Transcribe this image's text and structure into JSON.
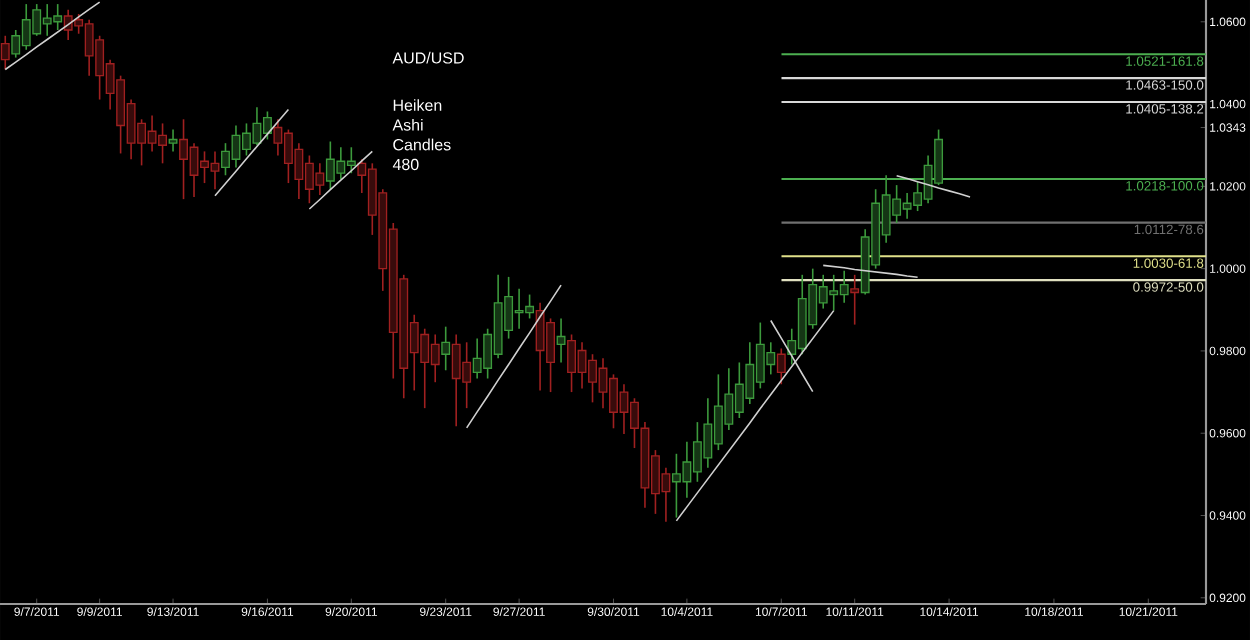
{
  "chart_data": {
    "type": "candlestick",
    "title": "AUD/USD",
    "subtitle": "Heiken Ashi Candles 480",
    "categories": [
      null,
      null,
      null,
      "9/7/2011",
      null,
      null,
      null,
      null,
      null,
      "9/9/2011",
      null,
      null,
      null,
      null,
      null,
      null,
      "9/13/2011",
      null,
      null,
      null,
      null,
      null,
      null,
      null,
      null,
      "9/16/2011",
      null,
      null,
      null,
      null,
      null,
      null,
      null,
      "9/20/2011",
      null,
      null,
      null,
      null,
      null,
      null,
      null,
      null,
      "9/23/2011",
      null,
      null,
      null,
      null,
      null,
      null,
      "9/27/2011",
      null,
      null,
      null,
      null,
      null,
      null,
      null,
      null,
      "9/30/2011",
      null,
      null,
      null,
      null,
      null,
      null,
      "10/4/2011",
      null,
      null,
      null,
      null,
      null,
      null,
      null,
      null,
      "10/7/2011",
      null,
      null,
      null,
      null,
      null,
      null,
      "10/11/2011",
      null,
      null,
      null,
      null,
      null,
      null,
      null,
      null,
      "10/14/2011",
      null,
      null,
      null,
      null,
      null,
      null,
      null,
      null,
      null,
      "10/18/2011",
      null,
      null,
      null,
      null,
      null,
      null,
      null,
      null,
      "10/21/2011",
      null,
      null,
      null,
      null,
      null
    ],
    "ohlc": [
      [
        1.0547,
        1.0566,
        1.0484,
        1.0508
      ],
      [
        1.0522,
        1.058,
        1.0513,
        1.0566
      ],
      [
        1.0542,
        1.0643,
        1.0532,
        1.0605
      ],
      [
        1.0571,
        1.0643,
        1.0566,
        1.0629
      ],
      [
        1.0595,
        1.0643,
        1.0566,
        1.0609
      ],
      [
        1.06,
        1.0643,
        1.058,
        1.0614
      ],
      [
        1.0614,
        1.0629,
        1.0556,
        1.058
      ],
      [
        1.0605,
        1.0619,
        1.0571,
        1.059
      ],
      [
        1.0595,
        1.0605,
        1.0469,
        1.0517
      ],
      [
        1.0556,
        1.0566,
        1.0411,
        1.0469
      ],
      [
        1.0498,
        1.0508,
        1.0387,
        1.0426
      ],
      [
        1.0459,
        1.0469,
        1.028,
        1.0348
      ],
      [
        1.0401,
        1.0411,
        1.0266,
        1.0305
      ],
      [
        1.0353,
        1.0363,
        1.0251,
        1.0305
      ],
      [
        1.0334,
        1.0372,
        1.0285,
        1.0305
      ],
      [
        1.0324,
        1.0353,
        1.0256,
        1.03
      ],
      [
        1.0305,
        1.0338,
        1.0285,
        1.0314
      ],
      [
        1.0314,
        1.0363,
        1.0169,
        1.0266
      ],
      [
        1.0295,
        1.0305,
        1.0174,
        1.0227
      ],
      [
        1.0261,
        1.0285,
        1.0208,
        1.0246
      ],
      [
        1.0256,
        1.0285,
        1.0193,
        1.0237
      ],
      [
        1.0246,
        1.0305,
        1.0227,
        1.0285
      ],
      [
        1.0266,
        1.0348,
        1.0246,
        1.0324
      ],
      [
        1.029,
        1.0353,
        1.0275,
        1.0329
      ],
      [
        1.0305,
        1.0392,
        1.03,
        1.0353
      ],
      [
        1.0329,
        1.0382,
        1.0314,
        1.0367
      ],
      [
        1.0343,
        1.0363,
        1.0275,
        1.0305
      ],
      [
        1.0329,
        1.0338,
        1.0208,
        1.0256
      ],
      [
        1.029,
        1.0305,
        1.0169,
        1.0217
      ],
      [
        1.0256,
        1.0275,
        1.0159,
        1.0193
      ],
      [
        1.0232,
        1.0256,
        1.0179,
        1.0203
      ],
      [
        1.0213,
        1.0309,
        1.0193,
        1.0266
      ],
      [
        1.0232,
        1.0295,
        1.0217,
        1.0261
      ],
      [
        1.0251,
        1.0295,
        1.0232,
        1.0261
      ],
      [
        1.0256,
        1.0266,
        1.0184,
        1.0227
      ],
      [
        1.0242,
        1.0256,
        1.0082,
        1.013
      ],
      [
        1.0184,
        1.0193,
        0.9946,
        1.0
      ],
      [
        1.0096,
        1.0111,
        0.9733,
        0.9845
      ],
      [
        0.9975,
        0.9985,
        0.9685,
        0.9758
      ],
      [
        0.9869,
        0.9888,
        0.9704,
        0.9796
      ],
      [
        0.984,
        0.9854,
        0.9661,
        0.9772
      ],
      [
        0.9816,
        0.984,
        0.9724,
        0.9767
      ],
      [
        0.9792,
        0.9859,
        0.9753,
        0.9821
      ],
      [
        0.9816,
        0.984,
        0.9617,
        0.9733
      ],
      [
        0.9772,
        0.9821,
        0.9661,
        0.9724
      ],
      [
        0.9748,
        0.983,
        0.9733,
        0.9782
      ],
      [
        0.9758,
        0.9854,
        0.9733,
        0.984
      ],
      [
        0.9792,
        0.9985,
        0.9782,
        0.9917
      ],
      [
        0.985,
        0.998,
        0.983,
        0.9932
      ],
      [
        0.9893,
        0.9951,
        0.9854,
        0.9898
      ],
      [
        0.9893,
        0.9937,
        0.9879,
        0.9908
      ],
      [
        0.9898,
        0.9917,
        0.9704,
        0.9801
      ],
      [
        0.9869,
        0.9879,
        0.97,
        0.9772
      ],
      [
        0.9816,
        0.9879,
        0.9772,
        0.9835
      ],
      [
        0.9825,
        0.984,
        0.97,
        0.9748
      ],
      [
        0.9801,
        0.9821,
        0.9709,
        0.9748
      ],
      [
        0.9777,
        0.9792,
        0.9675,
        0.9724
      ],
      [
        0.9758,
        0.9782,
        0.9661,
        0.97
      ],
      [
        0.9733,
        0.9743,
        0.9612,
        0.9651
      ],
      [
        0.97,
        0.9719,
        0.9598,
        0.9651
      ],
      [
        0.9675,
        0.9685,
        0.9564,
        0.9612
      ],
      [
        0.9612,
        0.9627,
        0.9419,
        0.9467
      ],
      [
        0.9545,
        0.9559,
        0.9404,
        0.9453
      ],
      [
        0.9501,
        0.9516,
        0.9385,
        0.9458
      ],
      [
        0.9482,
        0.955,
        0.9395,
        0.9501
      ],
      [
        0.9482,
        0.9579,
        0.9443,
        0.953
      ],
      [
        0.9506,
        0.9627,
        0.9482,
        0.9579
      ],
      [
        0.954,
        0.9685,
        0.9516,
        0.9622
      ],
      [
        0.9574,
        0.9743,
        0.9559,
        0.9666
      ],
      [
        0.9622,
        0.9758,
        0.9608,
        0.9695
      ],
      [
        0.9651,
        0.9772,
        0.9637,
        0.9719
      ],
      [
        0.9685,
        0.9821,
        0.9671,
        0.9767
      ],
      [
        0.9724,
        0.9869,
        0.9709,
        0.9816
      ],
      [
        0.9767,
        0.9821,
        0.9743,
        0.9796
      ],
      [
        0.9792,
        0.9806,
        0.9719,
        0.9748
      ],
      [
        0.9792,
        0.9854,
        0.9767,
        0.9825
      ],
      [
        0.9806,
        0.9985,
        0.9792,
        0.9927
      ],
      [
        0.9864,
        1.0,
        0.9854,
        0.9961
      ],
      [
        0.9917,
        0.9985,
        0.9903,
        0.9956
      ],
      [
        0.9937,
        0.9985,
        0.9898,
        0.9946
      ],
      [
        0.9937,
        0.9995,
        0.9917,
        0.9961
      ],
      [
        0.9951,
        0.9985,
        0.9864,
        0.9942
      ],
      [
        0.9942,
        1.0096,
        0.9937,
        1.0077
      ],
      [
        1.0009,
        1.0193,
        1.0,
        1.0159
      ],
      [
        1.0082,
        1.0227,
        1.0063,
        1.0179
      ],
      [
        1.013,
        1.0203,
        1.0111,
        1.0169
      ],
      [
        1.0145,
        1.0184,
        1.0121,
        1.0159
      ],
      [
        1.0154,
        1.0213,
        1.014,
        1.0184
      ],
      [
        1.0169,
        1.0275,
        1.0159,
        1.0251
      ],
      [
        1.0208,
        1.0338,
        1.0203,
        1.0314
      ],
      null,
      null,
      null,
      null,
      null,
      null,
      null,
      null,
      null,
      null,
      null,
      null,
      null,
      null,
      null,
      null,
      null,
      null,
      null,
      null,
      null,
      null,
      null,
      null,
      null
    ],
    "colors": [
      "#a02020",
      "#3c9a3c",
      "#3c9a3c",
      "#3c9a3c",
      "#3c9a3c",
      "#3c9a3c",
      "#a02020",
      "#a02020",
      "#a02020",
      "#a02020",
      "#a02020",
      "#a02020",
      "#a02020",
      "#a02020",
      "#a02020",
      "#a02020",
      "#3c9a3c",
      "#a02020",
      "#a02020",
      "#a02020",
      "#a02020",
      "#3c9a3c",
      "#3c9a3c",
      "#3c9a3c",
      "#3c9a3c",
      "#3c9a3c",
      "#a02020",
      "#a02020",
      "#a02020",
      "#a02020",
      "#a02020",
      "#3c9a3c",
      "#3c9a3c",
      "#3c9a3c",
      "#a02020",
      "#a02020",
      "#a02020",
      "#a02020",
      "#a02020",
      "#a02020",
      "#a02020",
      "#a02020",
      "#3c9a3c",
      "#a02020",
      "#a02020",
      "#3c9a3c",
      "#3c9a3c",
      "#3c9a3c",
      "#3c9a3c",
      "#3c9a3c",
      "#3c9a3c",
      "#a02020",
      "#a02020",
      "#3c9a3c",
      "#a02020",
      "#a02020",
      "#a02020",
      "#a02020",
      "#a02020",
      "#a02020",
      "#a02020",
      "#a02020",
      "#a02020",
      "#a02020",
      "#3c9a3c",
      "#3c9a3c",
      "#3c9a3c",
      "#3c9a3c",
      "#3c9a3c",
      "#3c9a3c",
      "#3c9a3c",
      "#3c9a3c",
      "#3c9a3c",
      "#3c9a3c",
      "#a02020",
      "#3c9a3c",
      "#3c9a3c",
      "#3c9a3c",
      "#3c9a3c",
      "#3c9a3c",
      "#3c9a3c",
      "#a02020",
      "#3c9a3c",
      "#3c9a3c",
      "#3c9a3c",
      "#3c9a3c",
      "#3c9a3c",
      "#3c9a3c",
      "#3c9a3c",
      "#3c9a3c",
      null,
      null,
      null,
      null,
      null,
      null,
      null,
      null,
      null,
      null,
      null,
      null,
      null,
      null,
      null,
      null,
      null,
      null,
      null,
      null,
      null,
      null,
      null,
      null,
      null
    ],
    "series": [
      {
        "type": "line",
        "color": "#d0d0d0",
        "values": [
          1.0484,
          1.0502,
          1.052,
          1.0539,
          1.0557,
          1.0575,
          1.0593,
          1.0612,
          1.063,
          1.0648,
          null,
          null,
          null,
          null,
          null,
          null,
          null,
          null,
          null,
          null,
          null,
          null,
          null,
          null,
          null,
          null,
          null,
          null,
          null,
          null,
          null,
          null,
          null,
          null,
          null,
          null,
          null,
          null,
          null,
          null,
          null,
          null,
          null,
          null,
          null,
          null,
          null,
          null,
          null,
          null,
          null,
          null,
          null,
          null,
          null,
          null,
          null,
          null,
          null,
          null,
          null,
          null,
          null,
          null,
          null,
          null,
          null,
          null,
          null,
          null,
          null,
          null,
          null,
          null,
          null,
          null,
          null,
          null,
          null,
          null,
          null,
          null,
          null,
          null,
          null,
          null,
          null,
          null,
          null,
          null,
          null,
          null,
          null,
          null,
          null,
          null,
          null,
          null,
          null,
          null,
          null,
          null,
          null,
          null,
          null,
          null,
          null,
          null,
          null,
          null,
          null,
          null,
          null,
          null,
          null
        ]
      },
      {
        "type": "line",
        "color": "#d0d0d0",
        "values": [
          null,
          null,
          null,
          null,
          null,
          null,
          null,
          null,
          null,
          null,
          null,
          null,
          null,
          null,
          null,
          null,
          null,
          null,
          null,
          null,
          1.0177,
          1.0207,
          1.0237,
          1.0267,
          1.0297,
          1.0327,
          1.0357,
          1.0387,
          null,
          null,
          null,
          null,
          null,
          null,
          null,
          null,
          null,
          null,
          null,
          null,
          null,
          null,
          null,
          null,
          null,
          null,
          null,
          null,
          null,
          null,
          null,
          null,
          null,
          null,
          null,
          null,
          null,
          null,
          null,
          null,
          null,
          null,
          null,
          null,
          null,
          null,
          null,
          null,
          null,
          null,
          null,
          null,
          null,
          null,
          null,
          null,
          null,
          null,
          null,
          null,
          null,
          null,
          null,
          null,
          null,
          null,
          null,
          null,
          null,
          null,
          null,
          null,
          null,
          null,
          null,
          null,
          null,
          null,
          null,
          null,
          null,
          null,
          null,
          null,
          null,
          null,
          null,
          null,
          null,
          null,
          null,
          null,
          null,
          null,
          null
        ]
      },
      {
        "type": "line",
        "color": "#d0d0d0",
        "values": [
          null,
          null,
          null,
          null,
          null,
          null,
          null,
          null,
          null,
          null,
          null,
          null,
          null,
          null,
          null,
          null,
          null,
          null,
          null,
          null,
          null,
          null,
          null,
          null,
          null,
          null,
          null,
          null,
          null,
          1.0145,
          1.0168,
          1.0192,
          1.0215,
          1.0238,
          1.0262,
          1.0285,
          null,
          null,
          null,
          null,
          null,
          null,
          null,
          null,
          null,
          null,
          null,
          null,
          null,
          null,
          null,
          null,
          null,
          null,
          null,
          null,
          null,
          null,
          null,
          null,
          null,
          null,
          null,
          null,
          null,
          null,
          null,
          null,
          null,
          null,
          null,
          null,
          null,
          null,
          null,
          null,
          null,
          null,
          null,
          null,
          null,
          null,
          null,
          null,
          null,
          null,
          null,
          null,
          null,
          null,
          null,
          null,
          null,
          null,
          null,
          null,
          null,
          null,
          null,
          null,
          null,
          null,
          null,
          null,
          null,
          null,
          null,
          null,
          null,
          null,
          null,
          null,
          null,
          null,
          null
        ]
      },
      {
        "type": "line",
        "color": "#d0d0d0",
        "values": [
          null,
          null,
          null,
          null,
          null,
          null,
          null,
          null,
          null,
          null,
          null,
          null,
          null,
          null,
          null,
          null,
          null,
          null,
          null,
          null,
          null,
          null,
          null,
          null,
          null,
          null,
          null,
          null,
          null,
          null,
          null,
          null,
          null,
          null,
          null,
          null,
          null,
          null,
          null,
          null,
          null,
          null,
          null,
          null,
          0.9613,
          0.9652,
          0.969,
          0.9729,
          0.9767,
          0.9806,
          0.9844,
          0.9883,
          0.9921,
          0.996,
          null,
          null,
          null,
          null,
          null,
          null,
          null,
          null,
          null,
          null,
          null,
          null,
          null,
          null,
          null,
          null,
          null,
          null,
          null,
          null,
          null,
          null,
          null,
          null,
          null,
          null,
          null,
          null,
          null,
          null,
          null,
          null,
          null,
          null,
          null,
          null,
          null,
          null,
          null,
          null,
          null,
          null,
          null,
          null,
          null,
          null,
          null,
          null,
          null,
          null,
          null,
          null,
          null,
          null,
          null,
          null,
          null,
          null,
          null,
          null,
          null
        ]
      },
      {
        "type": "line",
        "color": "#d0d0d0",
        "values": [
          null,
          null,
          null,
          null,
          null,
          null,
          null,
          null,
          null,
          null,
          null,
          null,
          null,
          null,
          null,
          null,
          null,
          null,
          null,
          null,
          null,
          null,
          null,
          null,
          null,
          null,
          null,
          null,
          null,
          null,
          null,
          null,
          null,
          null,
          null,
          null,
          null,
          null,
          null,
          null,
          null,
          null,
          null,
          null,
          null,
          null,
          null,
          null,
          null,
          null,
          null,
          null,
          null,
          null,
          null,
          null,
          null,
          null,
          null,
          null,
          null,
          null,
          null,
          null,
          0.9387,
          0.9421,
          0.9455,
          0.9489,
          0.9523,
          0.9557,
          0.9591,
          0.9625,
          0.966,
          0.9694,
          0.9728,
          0.9762,
          0.9796,
          0.983,
          0.9864,
          0.9898,
          null,
          null,
          null,
          null,
          null,
          null,
          null,
          null,
          null,
          null,
          null,
          null,
          null,
          null,
          null,
          null,
          null,
          null,
          null,
          null,
          null,
          null,
          null,
          null,
          null,
          null,
          null,
          null,
          null,
          null,
          null,
          null,
          null,
          null,
          null
        ]
      },
      {
        "type": "line",
        "color": "#d0d0d0",
        "values": [
          null,
          null,
          null,
          null,
          null,
          null,
          null,
          null,
          null,
          null,
          null,
          null,
          null,
          null,
          null,
          null,
          null,
          null,
          null,
          null,
          null,
          null,
          null,
          null,
          null,
          null,
          null,
          null,
          null,
          null,
          null,
          null,
          null,
          null,
          null,
          null,
          null,
          null,
          null,
          null,
          null,
          null,
          null,
          null,
          null,
          null,
          null,
          null,
          null,
          null,
          null,
          null,
          null,
          null,
          null,
          null,
          null,
          null,
          null,
          null,
          null,
          null,
          null,
          null,
          null,
          null,
          null,
          null,
          null,
          null,
          null,
          null,
          null,
          0.9874,
          0.9831,
          0.9788,
          0.9744,
          0.9701,
          null,
          null,
          null,
          null,
          null,
          null,
          null,
          null,
          null,
          null,
          null,
          null,
          null,
          null,
          null,
          null,
          null,
          null,
          null,
          null,
          null,
          null,
          null,
          null,
          null,
          null,
          null,
          null,
          null,
          null,
          null,
          null,
          null,
          null,
          null,
          null,
          null
        ]
      },
      {
        "type": "line",
        "color": "#d0d0d0",
        "values": [
          null,
          null,
          null,
          null,
          null,
          null,
          null,
          null,
          null,
          null,
          null,
          null,
          null,
          null,
          null,
          null,
          null,
          null,
          null,
          null,
          null,
          null,
          null,
          null,
          null,
          null,
          null,
          null,
          null,
          null,
          null,
          null,
          null,
          null,
          null,
          null,
          null,
          null,
          null,
          null,
          null,
          null,
          null,
          null,
          null,
          null,
          null,
          null,
          null,
          null,
          null,
          null,
          null,
          null,
          null,
          null,
          null,
          null,
          null,
          null,
          null,
          null,
          null,
          null,
          null,
          null,
          null,
          null,
          null,
          null,
          null,
          null,
          null,
          null,
          null,
          null,
          null,
          null,
          1.0008,
          1.0005,
          1.0002,
          0.9998,
          0.9995,
          0.9992,
          0.9989,
          0.9986,
          0.9982,
          0.9979,
          null,
          null,
          null,
          null,
          null,
          null,
          null,
          null,
          null,
          null,
          null,
          null,
          null,
          null,
          null,
          null,
          null,
          null,
          null,
          null,
          null,
          null,
          null,
          null,
          null,
          null,
          null
        ]
      },
      {
        "type": "line",
        "color": "#d0d0d0",
        "values": [
          null,
          null,
          null,
          null,
          null,
          null,
          null,
          null,
          null,
          null,
          null,
          null,
          null,
          null,
          null,
          null,
          null,
          null,
          null,
          null,
          null,
          null,
          null,
          null,
          null,
          null,
          null,
          null,
          null,
          null,
          null,
          null,
          null,
          null,
          null,
          null,
          null,
          null,
          null,
          null,
          null,
          null,
          null,
          null,
          null,
          null,
          null,
          null,
          null,
          null,
          null,
          null,
          null,
          null,
          null,
          null,
          null,
          null,
          null,
          null,
          null,
          null,
          null,
          null,
          null,
          null,
          null,
          null,
          null,
          null,
          null,
          null,
          null,
          null,
          null,
          null,
          null,
          null,
          null,
          null,
          null,
          null,
          null,
          null,
          null,
          1.0226,
          1.0219,
          1.0211,
          1.0204,
          1.0196,
          1.0189,
          1.0182,
          1.0174,
          null,
          null,
          null,
          null,
          null,
          null,
          null,
          null,
          null,
          null,
          null,
          null,
          null,
          null,
          null,
          null,
          null,
          null,
          null,
          null,
          null,
          null
        ]
      }
    ],
    "ref_lines": [
      {
        "axis": "y",
        "value": 1.0521,
        "label": "1.0521-161.8",
        "color": "#4caf50"
      },
      {
        "axis": "y",
        "value": 1.0463,
        "label": "1.0463-150.0",
        "color": "#d8d8d8"
      },
      {
        "axis": "y",
        "value": 1.0405,
        "label": "1.0405-138.2",
        "color": "#d8d8d8"
      },
      {
        "axis": "y",
        "value": 1.0218,
        "label": "1.0218-100.0",
        "color": "#4caf50"
      },
      {
        "axis": "y",
        "value": 1.0112,
        "label": "1.0112-78.6",
        "color": "#707070"
      },
      {
        "axis": "y",
        "value": 1.003,
        "label": "1.0030-61.8",
        "color": "#e0e08a"
      },
      {
        "axis": "y",
        "value": 0.9972,
        "label": "0.9972-50.0",
        "color": "#e0e0c0"
      }
    ],
    "ylim": [
      0.9185,
      1.0653
    ],
    "yticks": [
      {
        "value": 0.92,
        "label": "0.9200"
      },
      {
        "value": 0.94,
        "label": "0.9400"
      },
      {
        "value": 0.96,
        "label": "0.9600"
      },
      {
        "value": 0.98,
        "label": "0.9800"
      },
      {
        "value": 1.0,
        "label": "1.0000"
      },
      {
        "value": 1.02,
        "label": "1.0200"
      },
      {
        "value": 1.0343,
        "label": "1.0343"
      },
      {
        "value": 1.04,
        "label": "1.0400"
      },
      {
        "value": 1.06,
        "label": "1.0600"
      }
    ]
  }
}
